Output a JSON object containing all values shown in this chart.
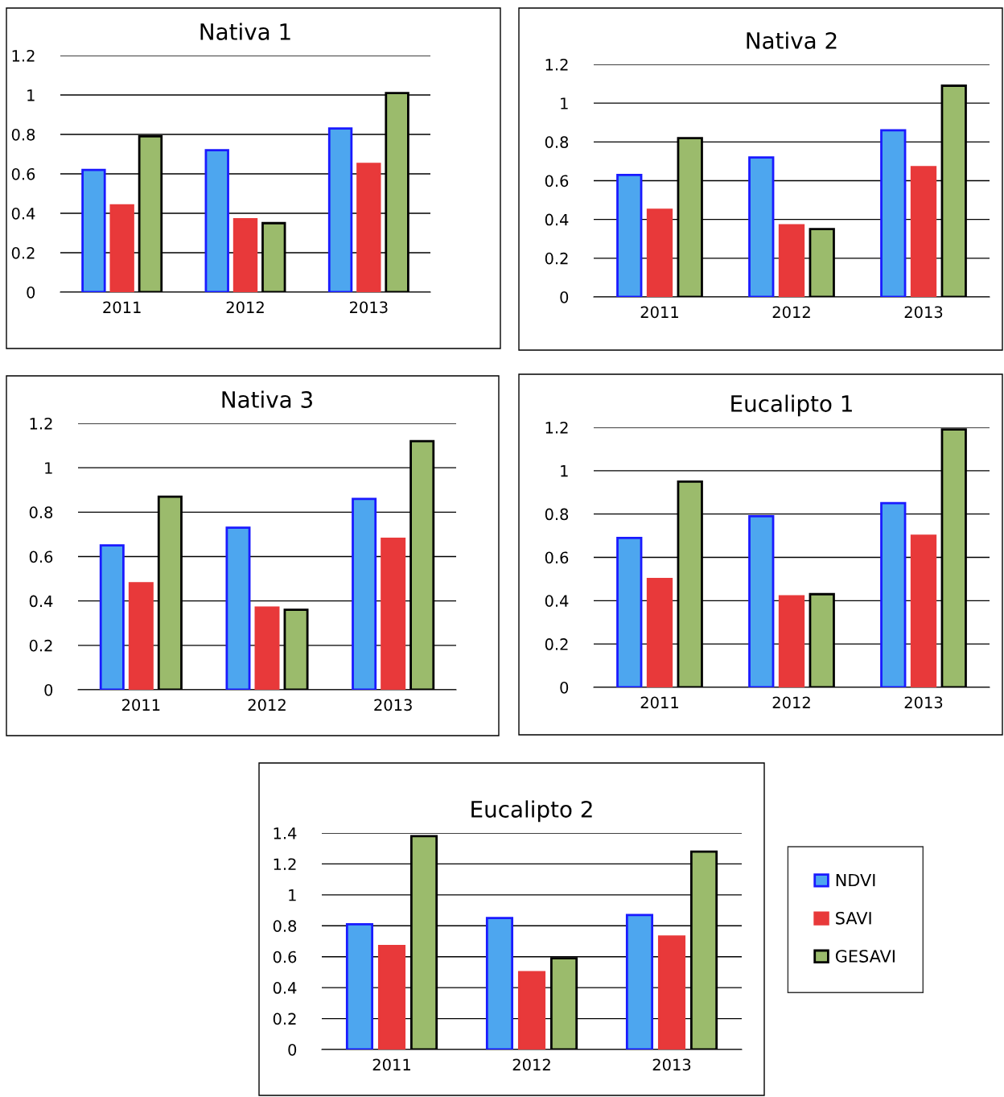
{
  "chart_data": [
    {
      "type": "bar",
      "title": "Nativa 1",
      "categories": [
        "2011",
        "2012",
        "2013"
      ],
      "ylim": [
        0,
        1.2
      ],
      "yticks": [
        0,
        0.2,
        0.4,
        0.6,
        0.8,
        1,
        1.2
      ],
      "grid": "y",
      "legend": false,
      "series": [
        {
          "color": "#4da6ef",
          "values": [
            0.62,
            0.72,
            0.83
          ]
        },
        {
          "color": "#e8393a",
          "values": [
            0.44,
            0.37,
            0.65
          ]
        },
        {
          "color": "#9bbb6c",
          "values": [
            0.79,
            0.35,
            1.01
          ]
        }
      ]
    },
    {
      "type": "bar",
      "title": "Nativa 2",
      "categories": [
        "2011",
        "2012",
        "2013"
      ],
      "ylim": [
        0,
        1.2
      ],
      "yticks": [
        0,
        0.2,
        0.4,
        0.6,
        0.8,
        1,
        1.2
      ],
      "grid": "y",
      "legend": false,
      "series": [
        {
          "color": "#4da6ef",
          "values": [
            0.63,
            0.72,
            0.86
          ]
        },
        {
          "color": "#e8393a",
          "values": [
            0.45,
            0.37,
            0.67
          ]
        },
        {
          "color": "#9bbb6c",
          "values": [
            0.82,
            0.35,
            1.09
          ]
        }
      ]
    },
    {
      "type": "bar",
      "title": "Nativa 3",
      "categories": [
        "2011",
        "2012",
        "2013"
      ],
      "ylim": [
        0,
        1.2
      ],
      "yticks": [
        0,
        0.2,
        0.4,
        0.6,
        0.8,
        1,
        1.2
      ],
      "grid": "y",
      "legend": false,
      "series": [
        {
          "color": "#4da6ef",
          "values": [
            0.65,
            0.73,
            0.86
          ]
        },
        {
          "color": "#e8393a",
          "values": [
            0.48,
            0.37,
            0.68
          ]
        },
        {
          "color": "#9bbb6c",
          "values": [
            0.87,
            0.36,
            1.12
          ]
        }
      ]
    },
    {
      "type": "bar",
      "title": "Eucalipto 1",
      "categories": [
        "2011",
        "2012",
        "2013"
      ],
      "ylim": [
        0,
        1.2
      ],
      "yticks": [
        0,
        0.2,
        0.4,
        0.6,
        0.8,
        1,
        1.2
      ],
      "grid": "y",
      "legend": false,
      "series": [
        {
          "color": "#4da6ef",
          "values": [
            0.69,
            0.79,
            0.85
          ]
        },
        {
          "color": "#e8393a",
          "values": [
            0.5,
            0.42,
            0.7
          ]
        },
        {
          "color": "#9bbb6c",
          "values": [
            0.95,
            0.43,
            1.19
          ]
        }
      ]
    },
    {
      "type": "bar",
      "title": "Eucalipto 2",
      "categories": [
        "2011",
        "2012",
        "2013"
      ],
      "ylim": [
        0,
        1.4
      ],
      "yticks": [
        0,
        0.2,
        0.4,
        0.6,
        0.8,
        1,
        1.2,
        1.4
      ],
      "grid": "y",
      "legend": "right",
      "series": [
        {
          "name": "NDVI",
          "color": "#4da6ef",
          "values": [
            0.81,
            0.85,
            0.87
          ]
        },
        {
          "name": "SAVI",
          "color": "#e8393a",
          "values": [
            0.67,
            0.5,
            0.73
          ]
        },
        {
          "name": "GESAVI",
          "color": "#9bbb6c",
          "values": [
            1.38,
            0.59,
            1.28
          ]
        }
      ]
    }
  ]
}
